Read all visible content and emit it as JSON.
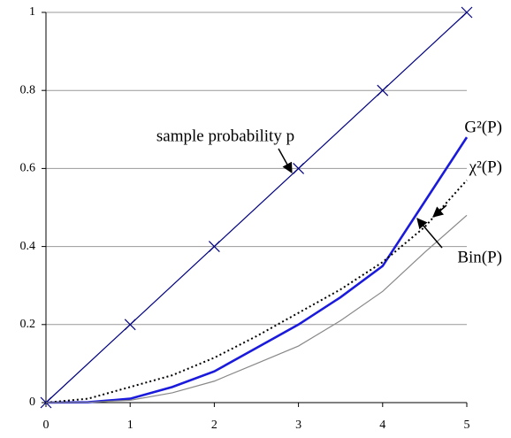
{
  "chart_data": {
    "type": "line",
    "xlim": [
      0,
      5
    ],
    "xticks": [
      0,
      1,
      2,
      3,
      4,
      5
    ],
    "ylim": [
      0,
      1
    ],
    "yticks": [
      0,
      0.2,
      0.4,
      0.6,
      0.8,
      1
    ],
    "grid": true,
    "series": [
      {
        "name": "sample probability p",
        "color": "#000080",
        "marker": "x",
        "x": [
          0,
          1,
          2,
          3,
          4,
          5
        ],
        "values": [
          0,
          0.2,
          0.4,
          0.6,
          0.8,
          1
        ]
      },
      {
        "name": "G²(P)",
        "color": "#1a1adc",
        "x": [
          0,
          0.5,
          1,
          1.5,
          2,
          2.5,
          3,
          3.5,
          4,
          4.5,
          5
        ],
        "values": [
          0,
          0.001,
          0.01,
          0.04,
          0.08,
          0.14,
          0.2,
          0.27,
          0.35,
          0.515,
          0.68
        ]
      },
      {
        "name": "χ²(P)",
        "color": "#000000",
        "dash": true,
        "x": [
          0,
          0.5,
          1,
          1.5,
          2,
          2.5,
          3,
          3.5,
          4,
          4.5,
          5
        ],
        "values": [
          0,
          0.01,
          0.04,
          0.07,
          0.115,
          0.17,
          0.23,
          0.29,
          0.36,
          0.45,
          0.57
        ]
      },
      {
        "name": "Bin(P)",
        "color": "#888888",
        "x": [
          0,
          0.5,
          1,
          1.5,
          2,
          2.5,
          3,
          3.5,
          4,
          4.5,
          5
        ],
        "values": [
          0,
          0.001,
          0.006,
          0.025,
          0.055,
          0.1,
          0.145,
          0.21,
          0.285,
          0.385,
          0.48
        ]
      }
    ]
  }
}
